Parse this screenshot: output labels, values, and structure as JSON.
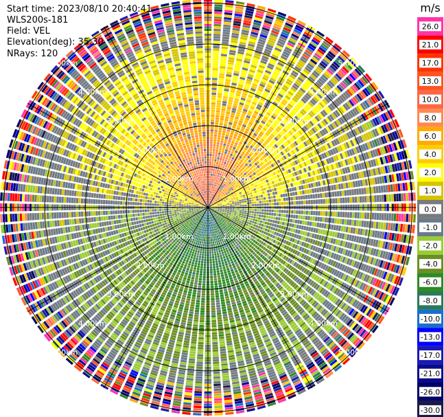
{
  "header": {
    "start_time": "Start time: 2023/08/10 20:40:41",
    "instrument": "WLS200s-181",
    "field": "Field: VEL",
    "elevation": "Elevation(deg): 35.30",
    "nrays": "NRays: 120"
  },
  "chart_data": {
    "type": "heatmap",
    "projection": "polar-ppi",
    "field": "VEL",
    "units": "m/s",
    "elevation_deg": 35.3,
    "n_rays": 120,
    "range_rings_km": [
      1.0,
      2.0,
      3.0,
      4.0,
      5.0
    ],
    "ring_labels": [
      "1.00km",
      "2.00km",
      "3.00km",
      "4.00km",
      "5.00km"
    ],
    "max_range_km": 5.1,
    "spoke_angles_deg": [
      0,
      30,
      60,
      90,
      120,
      150,
      180,
      210,
      240,
      270,
      300,
      330
    ],
    "velocity_pattern": {
      "approaching_direction": "south",
      "receding_direction": "north",
      "near_peak_receding": 12.0,
      "near_peak_approaching": -8.0,
      "outer_noise_from_km": 4.2
    },
    "colorbar": {
      "unit_label": "m/s",
      "ticks": [
        "26.0",
        "21.0",
        "17.0",
        "13.0",
        "10.0",
        "8.0",
        "6.0",
        "4.0",
        "2.0",
        "1.0",
        "0.0",
        "-1.0",
        "-2.0",
        "-4.0",
        "-6.0",
        "-8.0",
        "-10.0",
        "-13.0",
        "-17.0",
        "-21.0",
        "-26.0",
        "-30.0"
      ],
      "colors": [
        "#ff33aa",
        "#ff0000",
        "#ff3300",
        "#ff5522",
        "#ff6644",
        "#ff8855",
        "#ffaa00",
        "#ffcc00",
        "#ffff00",
        "#d4c400",
        "#7a7a7a",
        "#6a7a8a",
        "#99cc33",
        "#6b8e23",
        "#2e8b22",
        "#2a7a5a",
        "#1a6ecc",
        "#0000ff",
        "#1a1ab4",
        "#0a0a8a",
        "#000066",
        "#1a1a4a"
      ]
    }
  }
}
